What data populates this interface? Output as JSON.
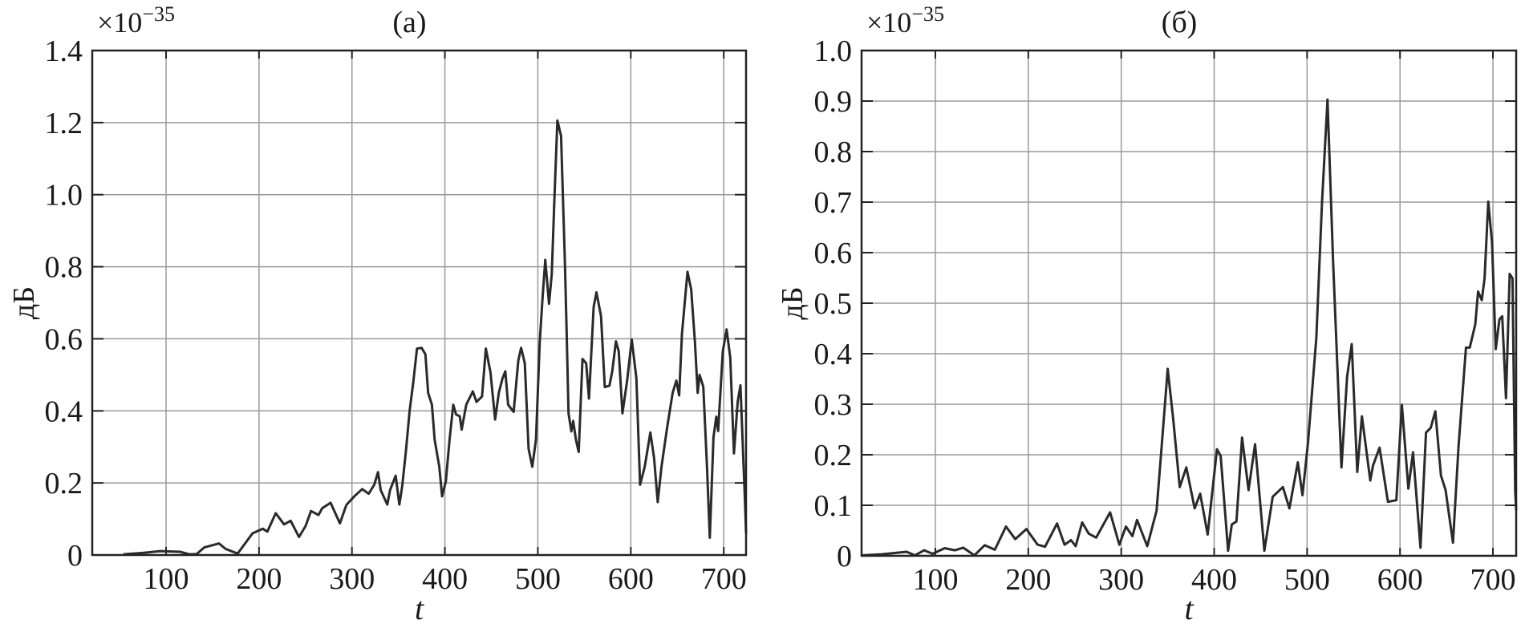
{
  "chart_data": [
    {
      "type": "line",
      "title": "(а)",
      "xlabel": "t",
      "ylabel": "дБ",
      "y_multiplier": "×10",
      "y_multiplier_exponent": "−35",
      "xlim": [
        20.6,
        724
      ],
      "ylim": [
        0,
        1.4
      ],
      "grid": true,
      "line_color": "#2a2a2a",
      "x_ticks": [
        100,
        200,
        300,
        400,
        500,
        600,
        700
      ],
      "x_tick_labels": [
        "100",
        "200",
        "300",
        "400",
        "500",
        "600",
        "700"
      ],
      "y_ticks": [
        0,
        0.2,
        0.4,
        0.6,
        0.8,
        1.0,
        1.2,
        1.4
      ],
      "y_tick_labels": [
        "0",
        "0.2",
        "0.4",
        "0.6",
        "0.8",
        "1.0",
        "1.2",
        "1.4"
      ],
      "x": [
        54,
        76,
        94,
        115,
        125,
        133,
        141,
        157,
        164,
        177,
        185,
        193,
        204,
        209,
        218,
        227,
        234,
        243,
        250,
        256,
        264,
        268,
        277,
        287,
        294,
        303,
        311,
        318,
        324,
        328,
        331,
        338,
        341,
        347,
        351,
        354,
        358,
        362,
        366,
        370,
        375,
        379,
        382,
        386,
        389,
        394,
        397,
        401,
        405,
        409,
        412,
        416,
        418,
        423,
        430,
        434,
        440,
        444,
        449,
        454,
        458,
        462,
        465,
        468,
        474,
        479,
        482,
        486,
        490,
        494,
        498,
        502,
        505,
        508,
        512,
        515,
        518,
        521,
        525,
        529,
        531,
        533,
        536,
        538,
        541,
        544,
        548,
        552,
        555,
        560,
        563,
        568,
        572,
        577,
        580,
        584,
        587,
        591,
        596,
        601,
        606,
        610,
        615,
        621,
        625,
        629,
        633,
        639,
        645,
        649,
        652,
        655,
        661,
        665,
        669,
        672,
        674,
        678,
        682,
        685,
        689,
        692,
        694,
        699,
        703,
        707,
        711,
        715,
        718,
        723,
        724
      ],
      "y": [
        0.002,
        0.006,
        0.011,
        0.009,
        0.002,
        0.003,
        0.021,
        0.032,
        0.017,
        0.004,
        0.032,
        0.06,
        0.073,
        0.065,
        0.116,
        0.085,
        0.095,
        0.05,
        0.08,
        0.122,
        0.111,
        0.13,
        0.145,
        0.088,
        0.139,
        0.164,
        0.183,
        0.17,
        0.195,
        0.23,
        0.18,
        0.14,
        0.18,
        0.22,
        0.14,
        0.19,
        0.286,
        0.4,
        0.48,
        0.573,
        0.575,
        0.557,
        0.45,
        0.417,
        0.32,
        0.245,
        0.163,
        0.205,
        0.32,
        0.417,
        0.39,
        0.385,
        0.348,
        0.417,
        0.454,
        0.425,
        0.44,
        0.573,
        0.507,
        0.376,
        0.45,
        0.49,
        0.51,
        0.417,
        0.397,
        0.54,
        0.575,
        0.532,
        0.295,
        0.245,
        0.32,
        0.59,
        0.713,
        0.819,
        0.697,
        0.78,
        1.0,
        1.206,
        1.163,
        0.819,
        0.614,
        0.393,
        0.343,
        0.372,
        0.319,
        0.286,
        0.544,
        0.532,
        0.434,
        0.688,
        0.729,
        0.663,
        0.466,
        0.47,
        0.51,
        0.593,
        0.565,
        0.393,
        0.483,
        0.598,
        0.49,
        0.195,
        0.245,
        0.34,
        0.27,
        0.147,
        0.245,
        0.352,
        0.45,
        0.484,
        0.443,
        0.614,
        0.786,
        0.737,
        0.59,
        0.45,
        0.5,
        0.467,
        0.245,
        0.048,
        0.327,
        0.384,
        0.344,
        0.565,
        0.626,
        0.548,
        0.282,
        0.426,
        0.471,
        0.14,
        0.06
      ]
    },
    {
      "type": "line",
      "title": "(б)",
      "xlabel": "t",
      "ylabel": "дБ",
      "y_multiplier": "×10",
      "y_multiplier_exponent": "−35",
      "xlim": [
        20.6,
        725
      ],
      "ylim": [
        0,
        1.0
      ],
      "grid": true,
      "line_color": "#2a2a2a",
      "x_ticks": [
        100,
        200,
        300,
        400,
        500,
        600,
        700
      ],
      "x_tick_labels": [
        "100",
        "200",
        "300",
        "400",
        "500",
        "600",
        "700"
      ],
      "y_ticks": [
        0,
        0.1,
        0.2,
        0.3,
        0.4,
        0.5,
        0.6,
        0.7,
        0.8,
        0.9,
        1.0
      ],
      "y_tick_labels": [
        "0",
        "0.1",
        "0.2",
        "0.3",
        "0.4",
        "0.5",
        "0.6",
        "0.7",
        "0.8",
        "0.9",
        "1.0"
      ],
      "x": [
        21.5,
        42,
        69,
        78,
        88,
        97,
        110,
        121,
        130,
        142,
        153,
        164,
        176,
        186,
        198,
        210,
        218,
        231,
        239,
        246,
        251,
        258,
        265,
        273,
        288,
        298,
        305,
        312,
        317,
        328,
        338,
        343,
        350,
        356,
        363,
        370,
        379,
        385,
        393,
        403,
        407,
        415,
        419,
        424,
        430,
        437,
        444,
        454,
        463,
        474,
        481,
        490,
        495,
        501,
        510,
        516,
        522,
        528,
        537,
        543,
        548,
        554,
        559,
        568,
        571,
        578,
        587,
        596,
        602,
        609,
        614,
        622,
        628,
        633,
        638,
        644,
        649,
        657,
        663,
        671,
        675,
        681,
        684,
        688,
        691,
        695,
        699,
        703,
        707,
        710,
        714,
        718,
        721,
        724,
        725
      ],
      "y": [
        0.001,
        0.003,
        0.008,
        0.001,
        0.011,
        0.004,
        0.015,
        0.011,
        0.016,
        0.001,
        0.021,
        0.012,
        0.058,
        0.033,
        0.053,
        0.022,
        0.018,
        0.064,
        0.022,
        0.031,
        0.019,
        0.066,
        0.044,
        0.036,
        0.086,
        0.022,
        0.058,
        0.039,
        0.071,
        0.019,
        0.089,
        0.205,
        0.37,
        0.27,
        0.136,
        0.175,
        0.094,
        0.123,
        0.042,
        0.211,
        0.198,
        0.01,
        0.062,
        0.068,
        0.234,
        0.13,
        0.221,
        0.01,
        0.117,
        0.136,
        0.094,
        0.185,
        0.12,
        0.224,
        0.432,
        0.698,
        0.903,
        0.581,
        0.175,
        0.354,
        0.419,
        0.166,
        0.276,
        0.149,
        0.179,
        0.214,
        0.107,
        0.11,
        0.299,
        0.133,
        0.205,
        0.016,
        0.244,
        0.253,
        0.286,
        0.159,
        0.13,
        0.026,
        0.218,
        0.412,
        0.412,
        0.458,
        0.523,
        0.506,
        0.549,
        0.701,
        0.62,
        0.409,
        0.468,
        0.474,
        0.312,
        0.558,
        0.549,
        0.127,
        0.09
      ]
    }
  ]
}
